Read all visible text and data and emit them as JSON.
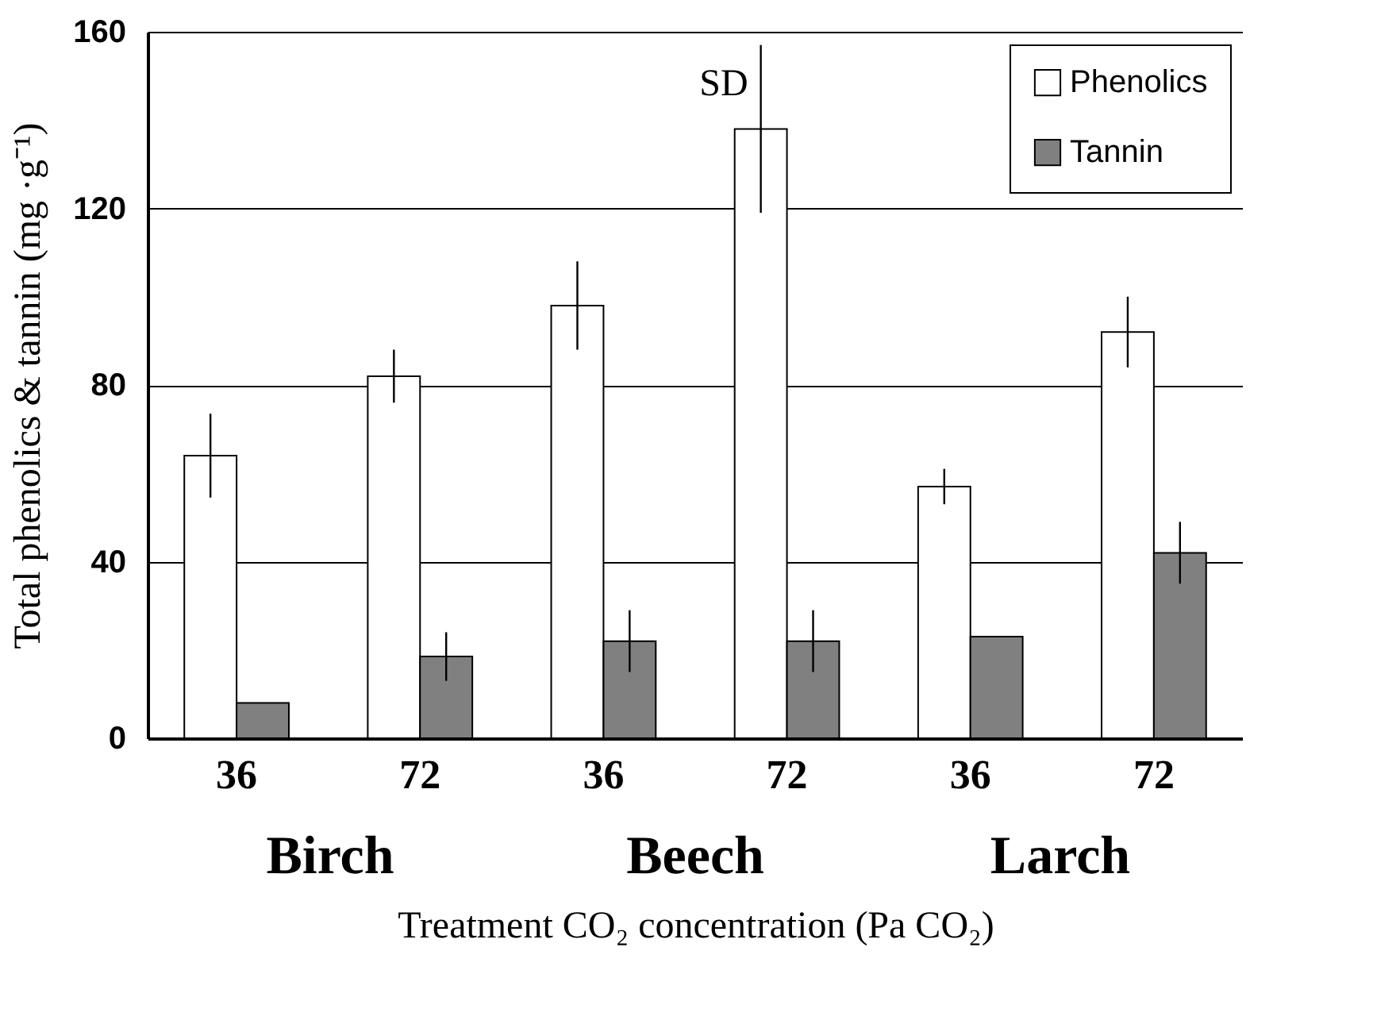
{
  "chart_data": {
    "type": "bar",
    "xlabel": "Treatment CO₂ concentration (Pa CO₂)",
    "ylabel": "Total phenolics & tannin (mg ·g⁻¹)",
    "categories": [
      "36",
      "72",
      "36",
      "72",
      "36",
      "72"
    ],
    "series": [
      {
        "name": "Phenolics",
        "color": "#ffffff",
        "values": [
          64,
          82,
          98,
          138,
          57,
          92
        ],
        "errors": [
          9.5,
          6,
          10,
          19,
          4,
          8
        ]
      },
      {
        "name": "Tannin",
        "color": "#808080",
        "values": [
          8,
          18.5,
          22,
          22,
          23,
          42
        ],
        "errors": [
          null,
          5.5,
          7,
          7,
          null,
          7
        ]
      }
    ],
    "ylim": [
      0,
      160
    ],
    "yticks": [
      0,
      40,
      80,
      120,
      160
    ],
    "grid": "y",
    "legend": "top right",
    "annotations": [
      "Birch",
      "Beech",
      "Larch",
      "SD"
    ]
  }
}
